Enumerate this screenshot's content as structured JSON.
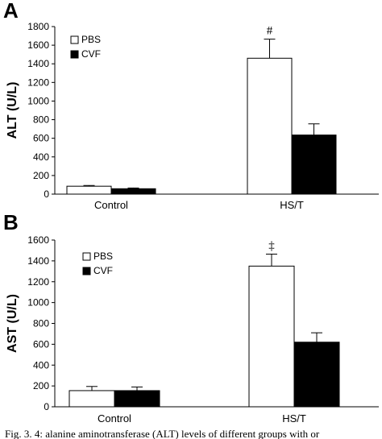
{
  "caption": "Fig. 3. 4: alanine aminotransferase (ALT) levels of different groups with or",
  "colors": {
    "PBS": "#ffffff",
    "CVF": "#000000",
    "stroke": "#000000"
  },
  "chart_data": [
    {
      "panel": "A",
      "type": "bar",
      "ylabel": "ALT (U/L)",
      "xlabel": "",
      "ylim": [
        0,
        1800
      ],
      "yticks": [
        0,
        200,
        400,
        600,
        800,
        1000,
        1200,
        1400,
        1600,
        1800
      ],
      "categories": [
        "Control",
        "HS/T"
      ],
      "legend_position": "top-left",
      "series": [
        {
          "name": "PBS",
          "values": [
            85,
            1460
          ],
          "errors": [
            8,
            205
          ]
        },
        {
          "name": "CVF",
          "values": [
            58,
            635
          ],
          "errors": [
            8,
            120
          ]
        }
      ],
      "annotations": [
        {
          "text": "#",
          "category": "HS/T",
          "series": "PBS"
        }
      ]
    },
    {
      "panel": "B",
      "type": "bar",
      "ylabel": "AST (U/L)",
      "xlabel": "",
      "ylim": [
        0,
        1600
      ],
      "yticks": [
        0,
        200,
        400,
        600,
        800,
        1000,
        1200,
        1400,
        1600
      ],
      "categories": [
        "Control",
        "HS/T"
      ],
      "legend_position": "top-left",
      "series": [
        {
          "name": "PBS",
          "values": [
            155,
            1350
          ],
          "errors": [
            40,
            115
          ]
        },
        {
          "name": "CVF",
          "values": [
            155,
            620
          ],
          "errors": [
            35,
            90
          ]
        }
      ],
      "annotations": [
        {
          "text": "‡",
          "category": "HS/T",
          "series": "PBS"
        }
      ]
    }
  ]
}
